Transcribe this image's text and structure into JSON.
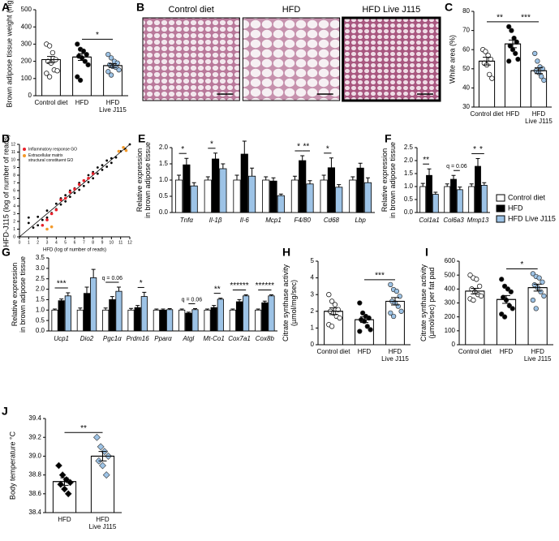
{
  "chart_data": [
    {
      "panel": "A",
      "type": "bar",
      "ylabel": "Brown adipose tissue weight (mg)",
      "categories": [
        "Control diet",
        "HFD",
        "HFD\nLive J115"
      ],
      "values": [
        210,
        225,
        175
      ],
      "errors": [
        18,
        20,
        11
      ],
      "color": "#ffffff",
      "points": [
        [
          300,
          290,
          250,
          210,
          200,
          190,
          150,
          145,
          130,
          110
        ],
        [
          300,
          270,
          260,
          240,
          230,
          220,
          200,
          180,
          110,
          90
        ],
        [
          240,
          220,
          200,
          190,
          180,
          170,
          165,
          150,
          140,
          120
        ]
      ],
      "point_colors": [
        "#ffffff",
        "#000000",
        "#9dc3e6"
      ],
      "marker": "circle",
      "ylim": [
        0,
        500
      ],
      "yticks": [
        0,
        100,
        200,
        300,
        400,
        500
      ],
      "annotations": [
        {
          "text": "*",
          "from": 1,
          "to": 2
        }
      ]
    },
    {
      "panel": "B",
      "type": "image",
      "labels": [
        "Control diet",
        "HFD",
        "HFD Live J115"
      ]
    },
    {
      "panel": "C",
      "type": "bar",
      "ylabel": "White area (%)",
      "categories": [
        "Control diet",
        "HFD",
        "HFD\nLive J115"
      ],
      "values": [
        54,
        63,
        49
      ],
      "errors": [
        2,
        2,
        1.5
      ],
      "color": "#ffffff",
      "points": [
        [
          60,
          59,
          57,
          55,
          53,
          52,
          47,
          45
        ],
        [
          72,
          70,
          66,
          64,
          62,
          60,
          58,
          55,
          54
        ],
        [
          58,
          54,
          51,
          50,
          49,
          48,
          46,
          44
        ]
      ],
      "point_colors": [
        "#ffffff",
        "#000000",
        "#9dc3e6"
      ],
      "marker": "circle",
      "ylim": [
        30,
        80
      ],
      "yticks": [
        30,
        40,
        50,
        60,
        70,
        80
      ],
      "annotations": [
        {
          "text": "**",
          "from": 0,
          "to": 1
        },
        {
          "text": "***",
          "from": 1,
          "to": 2
        }
      ]
    },
    {
      "panel": "D",
      "type": "scatter",
      "xlabel": "HFD (log of number of reads)",
      "ylabel": "HFD-J115 (log of number of reads)",
      "series": [
        {
          "color": "#000000",
          "x": [
            1,
            1.5,
            2,
            2.5,
            3,
            3.5,
            4,
            4.5,
            5,
            5.5,
            6,
            6.5,
            7,
            7.5,
            8,
            8.5,
            9,
            9.5,
            10,
            10.5,
            11,
            11.5,
            3,
            4,
            5,
            6,
            7,
            8,
            9,
            10,
            4.5,
            5.5,
            6.5,
            7.5,
            8.5,
            9.5,
            1,
            2,
            3,
            12
          ],
          "values": [
            1.8,
            1.2,
            2.6,
            2.2,
            3.4,
            3.1,
            4.3,
            4.2,
            5.4,
            5.2,
            6.3,
            6.1,
            7.3,
            7.1,
            8.4,
            8.2,
            9.3,
            9.1,
            10.2,
            10.3,
            11.1,
            11.4,
            2.5,
            3.6,
            4.6,
            5.7,
            6.6,
            7.6,
            8.7,
            9.6,
            5.0,
            6.0,
            7.0,
            8.0,
            9.0,
            9.9,
            2.5,
            1.5,
            1.0,
            12
          ]
        },
        {
          "name": "Inflammatory response GO",
          "color": "#e8202a",
          "x": [
            2.5,
            3,
            3.5,
            4,
            4.5,
            5,
            5.5,
            6,
            6.5,
            7,
            7.5,
            8
          ],
          "values": [
            1.5,
            2.2,
            3.0,
            3.5,
            4.8,
            5.0,
            5.8,
            6.2,
            6.8,
            7.3,
            7.6,
            8.2
          ]
        },
        {
          "name": "Extracellular matrix\nstructural constituent GO",
          "color": "#f39a2b",
          "x": [
            3,
            3.5,
            10.8,
            11.3,
            11.6
          ],
          "values": [
            1.0,
            1.3,
            11.1,
            11.6,
            11.2
          ]
        }
      ],
      "xlim": [
        0,
        12
      ],
      "ylim": [
        0,
        12
      ],
      "xticks": [
        0,
        1,
        2,
        3,
        4,
        5,
        6,
        7,
        8,
        9,
        10,
        11,
        12
      ],
      "yticks": [
        0,
        1,
        2,
        3,
        4,
        5,
        6,
        7,
        8,
        9,
        10,
        11,
        12
      ]
    },
    {
      "panel": "E",
      "type": "grouped_bar",
      "ylabel": "Relative expression\nin brown adipose tissue",
      "categories": [
        "Tnfα",
        "Il-1β",
        "Il-6",
        "Mcp1",
        "F4/80",
        "Cd68",
        "Lbp"
      ],
      "series": [
        {
          "color": "#ffffff",
          "values": [
            1.0,
            1.0,
            1.0,
            1.0,
            1.0,
            1.0,
            1.0
          ],
          "errors": [
            0.15,
            0.1,
            0.15,
            0.1,
            0.12,
            0.15,
            0.1
          ]
        },
        {
          "color": "#000000",
          "values": [
            1.47,
            1.65,
            1.8,
            0.97,
            1.6,
            1.38,
            1.37
          ],
          "errors": [
            0.2,
            0.18,
            0.4,
            0.1,
            0.15,
            0.3,
            0.15
          ]
        },
        {
          "color": "#9dc3e6",
          "values": [
            0.82,
            1.35,
            1.12,
            0.52,
            0.88,
            0.78,
            0.92
          ],
          "errors": [
            0.1,
            0.15,
            0.25,
            0.05,
            0.1,
            0.08,
            0.15
          ]
        }
      ],
      "ylim": [
        0,
        2.0
      ],
      "yticks": [
        {
          "value": 0,
          "label": "0.0"
        },
        0.5,
        {
          "value": 1,
          "label": "1.0"
        },
        1.5,
        {
          "value": 2,
          "label": "2.0"
        }
      ],
      "annotations": [
        {
          "text": "*",
          "category": 0,
          "from": 0,
          "to": 1
        },
        {
          "text": "*",
          "category": 1,
          "from": 0,
          "to": 1
        },
        {
          "text": "*",
          "category": 4,
          "from": 0,
          "to": 1
        },
        {
          "text": "**",
          "category": 4,
          "from": 1,
          "to": 2
        },
        {
          "text": "*",
          "category": 5,
          "from": 0,
          "to": 1
        }
      ]
    },
    {
      "panel": "F",
      "type": "grouped_bar",
      "ylabel": "Relative expression\nin brown adipose tissue",
      "legend": true,
      "categories": [
        "Col1a1",
        "Col6a3",
        "Mmp13"
      ],
      "series": [
        {
          "name": "Control diet",
          "color": "#ffffff",
          "values": [
            1.0,
            1.0,
            1.0
          ],
          "errors": [
            0.12,
            0.1,
            0.1
          ]
        },
        {
          "name": "HFD",
          "color": "#000000",
          "values": [
            1.43,
            1.28,
            1.78
          ],
          "errors": [
            0.25,
            0.15,
            0.3
          ]
        },
        {
          "name": "HFD  Live J115",
          "color": "#9dc3e6",
          "values": [
            0.7,
            0.88,
            1.05
          ],
          "errors": [
            0.08,
            0.1,
            0.1
          ]
        }
      ],
      "ylim": [
        0,
        2.5
      ],
      "yticks": [
        {
          "value": 0,
          "label": "0.0"
        },
        0.5,
        {
          "value": 1,
          "label": "1.0"
        },
        1.5,
        {
          "value": 2,
          "label": "2.0"
        },
        2.5
      ],
      "annotations": [
        {
          "text": "**",
          "category": 0,
          "from": 0,
          "to": 1
        },
        {
          "text": "q = 0.06",
          "category": 1,
          "from": 1,
          "to": 2
        },
        {
          "text": "*",
          "category": 2,
          "from": 0,
          "to": 1
        },
        {
          "text": "*",
          "category": 2,
          "from": 1,
          "to": 2
        }
      ]
    },
    {
      "panel": "G",
      "type": "grouped_bar",
      "ylabel": "Relative expression\nin brown adipose tissue",
      "categories": [
        "Ucp1",
        "Dio2",
        "Pgc1α",
        "Prdm16",
        "Pparα",
        "Atgl",
        "Mt-Co1",
        "Cox7a1",
        "Cox8b"
      ],
      "series": [
        {
          "color": "#ffffff",
          "values": [
            1.0,
            1.0,
            1.0,
            1.0,
            1.0,
            1.0,
            1.0,
            1.0,
            1.0
          ],
          "errors": [
            0.05,
            0.1,
            0.1,
            0.08,
            0.05,
            0.05,
            0.05,
            0.05,
            0.05
          ]
        },
        {
          "color": "#000000",
          "values": [
            1.45,
            1.8,
            1.5,
            1.12,
            1.0,
            0.85,
            1.12,
            1.4,
            1.35
          ],
          "errors": [
            0.08,
            0.3,
            0.15,
            0.1,
            0.05,
            0.05,
            0.1,
            0.1,
            0.08
          ]
        },
        {
          "color": "#9dc3e6",
          "values": [
            1.68,
            2.55,
            1.9,
            1.65,
            1.02,
            1.02,
            1.52,
            1.68,
            1.68
          ],
          "errors": [
            0.15,
            0.4,
            0.2,
            0.2,
            0.05,
            0.05,
            0.05,
            0.05,
            0.05
          ]
        }
      ],
      "ylim": [
        0,
        3.5
      ],
      "yticks": [
        {
          "value": 0,
          "label": "0.0"
        },
        0.5,
        {
          "value": 1,
          "label": "1.0"
        },
        1.5,
        {
          "value": 2,
          "label": "2.0"
        },
        2.5,
        {
          "value": 3,
          "label": "3.0"
        },
        3.5
      ],
      "annotations": [
        {
          "text": "***",
          "category": 0,
          "from": 0,
          "to": 2
        },
        {
          "text": "q = 0.06",
          "category": 2,
          "from": 0,
          "to": 2
        },
        {
          "text": "*",
          "category": 3,
          "from": 1,
          "to": 2
        },
        {
          "text": "q = 0.06",
          "category": 5,
          "from": 1,
          "to": 2
        },
        {
          "text": "**",
          "category": 6,
          "from": 1,
          "to": 2
        },
        {
          "text": "******",
          "category": 7,
          "from": 0,
          "to": 2
        },
        {
          "text": "******",
          "category": 8,
          "from": 0,
          "to": 2
        }
      ]
    },
    {
      "panel": "H",
      "type": "bar",
      "ylabel": "Citrate synthase activity\n(µmol/mg/sec)",
      "categories": [
        "Control diet",
        "HFD",
        "HFD\nLive J115"
      ],
      "values": [
        2.0,
        1.5,
        2.6
      ],
      "errors": [
        0.2,
        0.17,
        0.22
      ],
      "color": "#ffffff",
      "points": [
        [
          3.0,
          2.6,
          2.4,
          2.1,
          2.0,
          1.9,
          1.7,
          1.6,
          1.2,
          1.1
        ],
        [
          2.5,
          1.9,
          1.7,
          1.6,
          1.5,
          1.4,
          1.1,
          0.9,
          0.8
        ],
        [
          3.6,
          3.3,
          3.2,
          2.9,
          2.6,
          2.5,
          2.3,
          2.0,
          1.9,
          1.7
        ]
      ],
      "point_colors": [
        "#ffffff",
        "#000000",
        "#9dc3e6"
      ],
      "marker": "circle",
      "ylim": [
        0,
        5
      ],
      "yticks": [
        0,
        1,
        2,
        3,
        4,
        5
      ],
      "annotations": [
        {
          "text": "***",
          "from": 1,
          "to": 2
        }
      ]
    },
    {
      "panel": "I",
      "type": "bar",
      "ylabel": "Citrate synthase activity\n(µmol/sec) per fat pad",
      "categories": [
        "Control diet",
        "HFD",
        "HFD\nLive J115"
      ],
      "values": [
        385,
        325,
        410
      ],
      "errors": [
        20,
        28,
        25
      ],
      "color": "#ffffff",
      "points": [
        [
          500,
          480,
          470,
          420,
          400,
          380,
          360,
          350,
          330,
          320
        ],
        [
          470,
          420,
          400,
          380,
          340,
          320,
          280,
          260,
          220,
          200
        ],
        [
          510,
          490,
          480,
          450,
          430,
          410,
          380,
          350,
          320,
          260
        ]
      ],
      "point_colors": [
        "#ffffff",
        "#000000",
        "#9dc3e6"
      ],
      "marker": "circle",
      "ylim": [
        0,
        600
      ],
      "yticks": [
        0,
        100,
        200,
        300,
        400,
        500,
        600
      ],
      "annotations": [
        {
          "text": "*",
          "from": 1,
          "to": 2
        }
      ]
    },
    {
      "panel": "J",
      "type": "bar",
      "ylabel": "Body temperature °C",
      "categories": [
        "HFD",
        "HFD\nLive J115"
      ],
      "values": [
        38.73,
        39.0
      ],
      "errors": [
        0.04,
        0.05
      ],
      "color": "#ffffff",
      "points": [
        [
          38.9,
          38.8,
          38.75,
          38.72,
          38.7,
          38.65,
          38.6
        ],
        [
          39.2,
          39.1,
          39.05,
          39.0,
          38.95,
          38.9,
          38.8
        ]
      ],
      "point_colors": [
        "#000000",
        "#9dc3e6"
      ],
      "marker": "diamond",
      "ylim": [
        38.4,
        39.4
      ],
      "yticks": [
        38.4,
        38.6,
        38.8,
        {
          "value": 39,
          "label": "39.0"
        },
        39.2,
        39.4
      ],
      "annotations": [
        {
          "text": "**",
          "from": 0,
          "to": 1
        }
      ]
    }
  ]
}
